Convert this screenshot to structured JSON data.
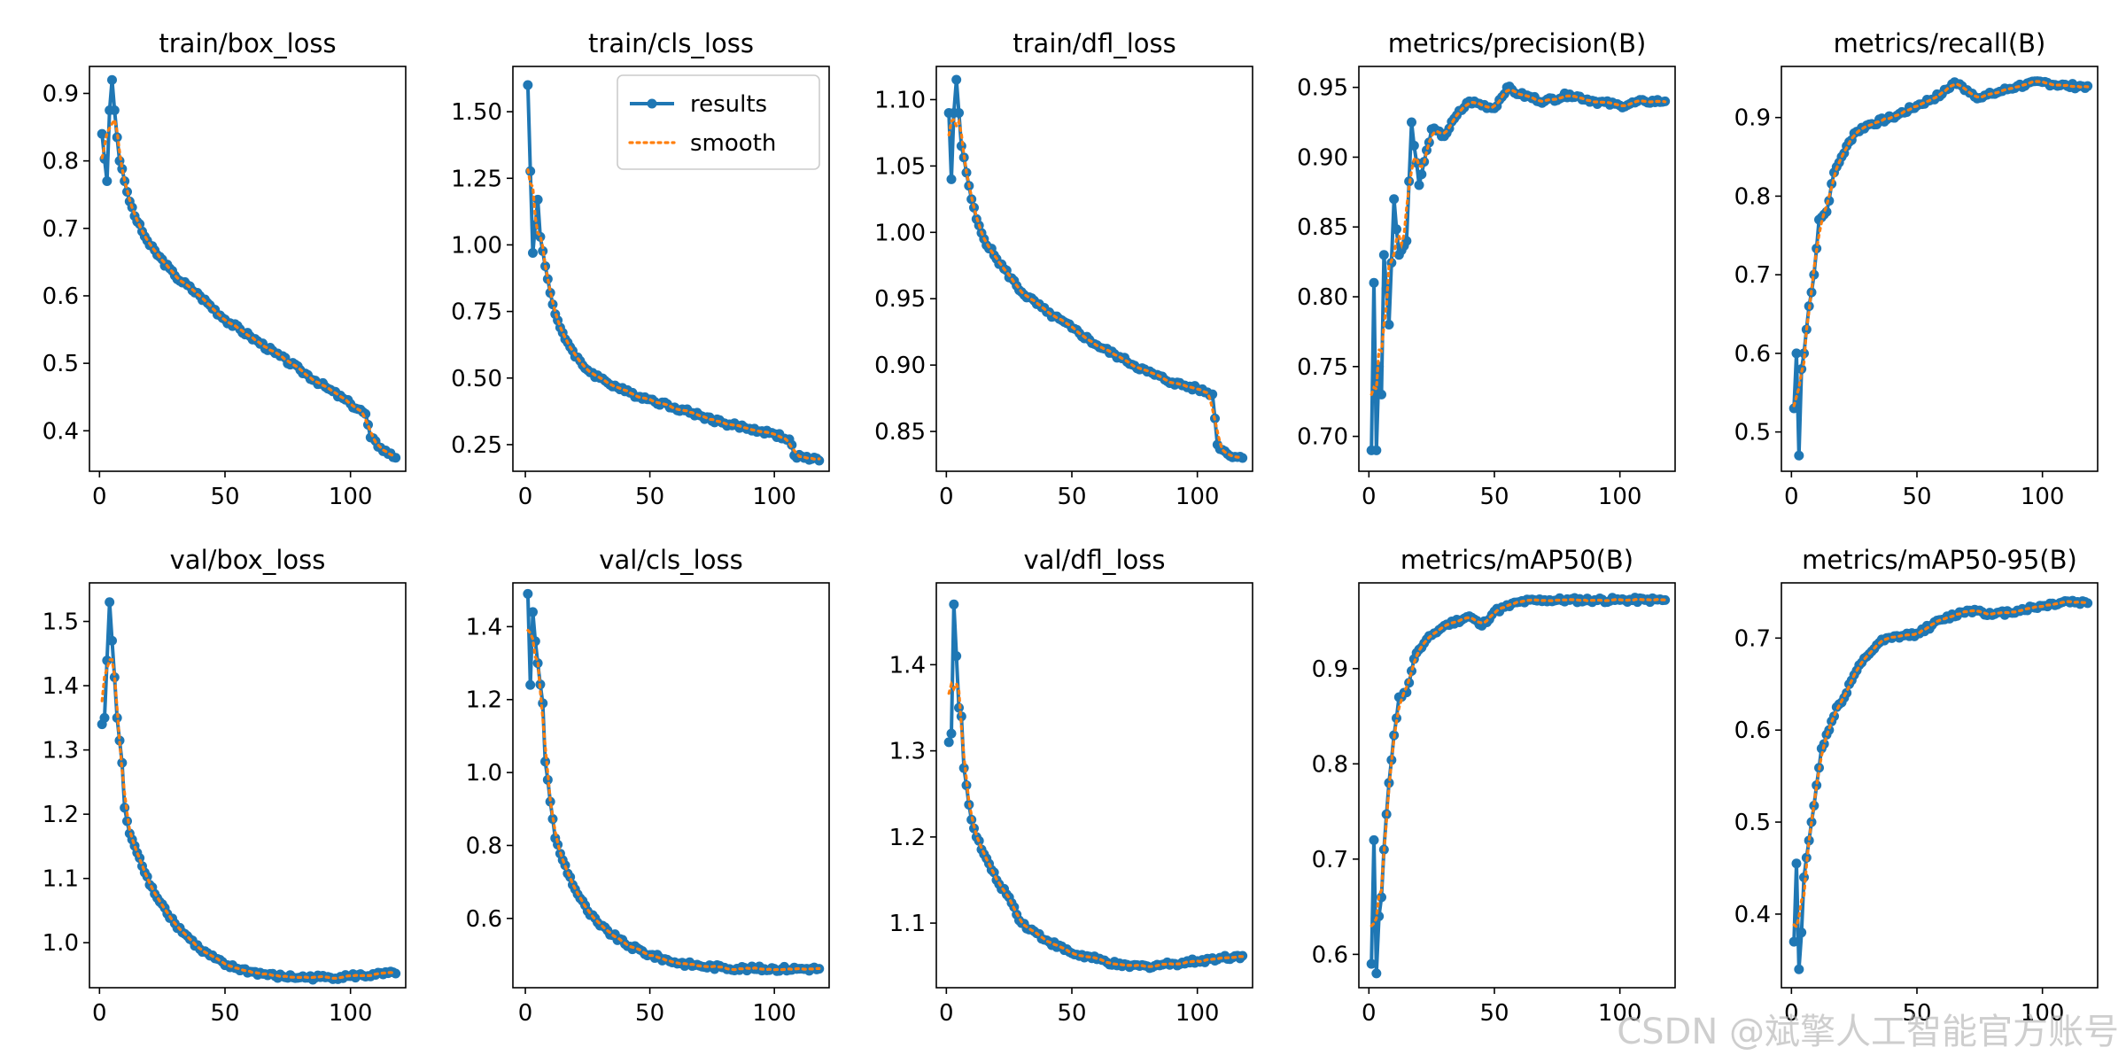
{
  "watermark": "CSDN @斌擎人工智能官方账号",
  "legend": {
    "series": [
      "results",
      "smooth"
    ]
  },
  "colors": {
    "results": "#1f77b4",
    "smooth": "#ff7f0e",
    "axis": "#000000"
  },
  "chart_data": [
    {
      "type": "line",
      "title": "train/box_loss",
      "xlim": [
        -4,
        122
      ],
      "ylim": [
        0.34,
        0.94
      ],
      "xticks": [
        0,
        50,
        100
      ],
      "yticks": [
        0.4,
        0.5,
        0.6,
        0.7,
        0.8,
        0.9
      ],
      "ytick_labels": [
        "0.4",
        "0.5",
        "0.6",
        "0.7",
        "0.8",
        "0.9"
      ],
      "anchors": [
        [
          1,
          0.84
        ],
        [
          3,
          0.77
        ],
        [
          4,
          0.875
        ],
        [
          5,
          0.92
        ],
        [
          6,
          0.875
        ],
        [
          7,
          0.835
        ],
        [
          8,
          0.8
        ],
        [
          10,
          0.77
        ],
        [
          12,
          0.74
        ],
        [
          15,
          0.71
        ],
        [
          20,
          0.675
        ],
        [
          30,
          0.63
        ],
        [
          40,
          0.6
        ],
        [
          50,
          0.565
        ],
        [
          60,
          0.54
        ],
        [
          70,
          0.515
        ],
        [
          80,
          0.49
        ],
        [
          90,
          0.465
        ],
        [
          100,
          0.44
        ],
        [
          106,
          0.425
        ],
        [
          108,
          0.39
        ],
        [
          112,
          0.375
        ],
        [
          118,
          0.36
        ]
      ],
      "legend": false
    },
    {
      "type": "line",
      "title": "train/cls_loss",
      "xlim": [
        -5,
        122
      ],
      "ylim": [
        0.15,
        1.67
      ],
      "xticks": [
        0,
        50,
        100
      ],
      "yticks": [
        0.25,
        0.5,
        0.75,
        1.0,
        1.25,
        1.5
      ],
      "ytick_labels": [
        "0.25",
        "0.50",
        "0.75",
        "1.00",
        "1.25",
        "1.50"
      ],
      "anchors": [
        [
          1,
          1.6
        ],
        [
          3,
          0.97
        ],
        [
          5,
          1.17
        ],
        [
          6,
          1.03
        ],
        [
          8,
          0.92
        ],
        [
          10,
          0.82
        ],
        [
          12,
          0.74
        ],
        [
          15,
          0.67
        ],
        [
          20,
          0.58
        ],
        [
          25,
          0.53
        ],
        [
          30,
          0.5
        ],
        [
          40,
          0.45
        ],
        [
          50,
          0.42
        ],
        [
          60,
          0.39
        ],
        [
          70,
          0.36
        ],
        [
          80,
          0.33
        ],
        [
          90,
          0.31
        ],
        [
          100,
          0.29
        ],
        [
          106,
          0.27
        ],
        [
          108,
          0.21
        ],
        [
          112,
          0.2
        ],
        [
          118,
          0.19
        ]
      ],
      "legend": true
    },
    {
      "type": "line",
      "title": "train/dfl_loss",
      "xlim": [
        -4,
        122
      ],
      "ylim": [
        0.82,
        1.125
      ],
      "xticks": [
        0,
        50,
        100
      ],
      "yticks": [
        0.85,
        0.9,
        0.95,
        1.0,
        1.05,
        1.1
      ],
      "ytick_labels": [
        "0.85",
        "0.90",
        "0.95",
        "1.00",
        "1.05",
        "1.10"
      ],
      "anchors": [
        [
          1,
          1.09
        ],
        [
          2,
          1.04
        ],
        [
          3,
          1.09
        ],
        [
          4,
          1.115
        ],
        [
          5,
          1.09
        ],
        [
          6,
          1.065
        ],
        [
          8,
          1.045
        ],
        [
          10,
          1.025
        ],
        [
          12,
          1.01
        ],
        [
          15,
          0.995
        ],
        [
          20,
          0.98
        ],
        [
          30,
          0.955
        ],
        [
          40,
          0.94
        ],
        [
          50,
          0.928
        ],
        [
          60,
          0.915
        ],
        [
          70,
          0.905
        ],
        [
          80,
          0.895
        ],
        [
          90,
          0.887
        ],
        [
          100,
          0.882
        ],
        [
          106,
          0.878
        ],
        [
          108,
          0.84
        ],
        [
          112,
          0.833
        ],
        [
          118,
          0.83
        ]
      ],
      "legend": false
    },
    {
      "type": "line",
      "title": "metrics/precision(B)",
      "xlim": [
        -4,
        122
      ],
      "ylim": [
        0.675,
        0.965
      ],
      "xticks": [
        0,
        50,
        100
      ],
      "yticks": [
        0.7,
        0.75,
        0.8,
        0.85,
        0.9,
        0.95
      ],
      "ytick_labels": [
        "0.70",
        "0.75",
        "0.80",
        "0.85",
        "0.90",
        "0.95"
      ],
      "anchors": [
        [
          1,
          0.69
        ],
        [
          2,
          0.81
        ],
        [
          3,
          0.69
        ],
        [
          4,
          0.75
        ],
        [
          5,
          0.73
        ],
        [
          6,
          0.83
        ],
        [
          8,
          0.78
        ],
        [
          10,
          0.87
        ],
        [
          12,
          0.83
        ],
        [
          15,
          0.84
        ],
        [
          17,
          0.925
        ],
        [
          20,
          0.88
        ],
        [
          25,
          0.92
        ],
        [
          30,
          0.915
        ],
        [
          35,
          0.93
        ],
        [
          40,
          0.94
        ],
        [
          50,
          0.935
        ],
        [
          55,
          0.95
        ],
        [
          60,
          0.945
        ],
        [
          70,
          0.94
        ],
        [
          80,
          0.945
        ],
        [
          90,
          0.94
        ],
        [
          100,
          0.937
        ],
        [
          110,
          0.94
        ],
        [
          118,
          0.94
        ]
      ],
      "legend": false
    },
    {
      "type": "line",
      "title": "metrics/recall(B)",
      "xlim": [
        -4,
        122
      ],
      "ylim": [
        0.45,
        0.965
      ],
      "xticks": [
        0,
        50,
        100
      ],
      "yticks": [
        0.5,
        0.6,
        0.7,
        0.8,
        0.9
      ],
      "ytick_labels": [
        "0.5",
        "0.6",
        "0.7",
        "0.8",
        "0.9"
      ],
      "anchors": [
        [
          1,
          0.53
        ],
        [
          2,
          0.6
        ],
        [
          3,
          0.47
        ],
        [
          4,
          0.58
        ],
        [
          5,
          0.6
        ],
        [
          7,
          0.66
        ],
        [
          9,
          0.7
        ],
        [
          11,
          0.77
        ],
        [
          14,
          0.78
        ],
        [
          17,
          0.83
        ],
        [
          20,
          0.85
        ],
        [
          25,
          0.88
        ],
        [
          30,
          0.89
        ],
        [
          40,
          0.9
        ],
        [
          50,
          0.915
        ],
        [
          60,
          0.93
        ],
        [
          65,
          0.945
        ],
        [
          70,
          0.935
        ],
        [
          75,
          0.925
        ],
        [
          80,
          0.93
        ],
        [
          90,
          0.94
        ],
        [
          100,
          0.945
        ],
        [
          110,
          0.94
        ],
        [
          118,
          0.94
        ]
      ],
      "legend": false
    },
    {
      "type": "line",
      "title": "val/box_loss",
      "xlim": [
        -4,
        122
      ],
      "ylim": [
        0.93,
        1.56
      ],
      "xticks": [
        0,
        50,
        100
      ],
      "yticks": [
        1.0,
        1.1,
        1.2,
        1.3,
        1.4,
        1.5
      ],
      "ytick_labels": [
        "1.0",
        "1.1",
        "1.2",
        "1.3",
        "1.4",
        "1.5"
      ],
      "anchors": [
        [
          1,
          1.34
        ],
        [
          2,
          1.35
        ],
        [
          4,
          1.53
        ],
        [
          5,
          1.47
        ],
        [
          7,
          1.35
        ],
        [
          9,
          1.28
        ],
        [
          10,
          1.21
        ],
        [
          12,
          1.17
        ],
        [
          15,
          1.14
        ],
        [
          20,
          1.09
        ],
        [
          25,
          1.06
        ],
        [
          30,
          1.03
        ],
        [
          40,
          0.99
        ],
        [
          50,
          0.965
        ],
        [
          60,
          0.955
        ],
        [
          70,
          0.948
        ],
        [
          80,
          0.946
        ],
        [
          90,
          0.946
        ],
        [
          100,
          0.948
        ],
        [
          110,
          0.95
        ],
        [
          118,
          0.952
        ]
      ],
      "legend": false
    },
    {
      "type": "line",
      "title": "val/cls_loss",
      "xlim": [
        -5,
        122
      ],
      "ylim": [
        0.41,
        1.52
      ],
      "xticks": [
        0,
        50,
        100
      ],
      "yticks": [
        0.6,
        0.8,
        1.0,
        1.2,
        1.4
      ],
      "ytick_labels": [
        "0.6",
        "0.8",
        "1.0",
        "1.2",
        "1.4"
      ],
      "anchors": [
        [
          1,
          1.49
        ],
        [
          2,
          1.24
        ],
        [
          3,
          1.44
        ],
        [
          4,
          1.36
        ],
        [
          5,
          1.3
        ],
        [
          7,
          1.19
        ],
        [
          8,
          1.03
        ],
        [
          9,
          0.98
        ],
        [
          10,
          0.92
        ],
        [
          12,
          0.82
        ],
        [
          15,
          0.76
        ],
        [
          20,
          0.68
        ],
        [
          25,
          0.62
        ],
        [
          30,
          0.58
        ],
        [
          40,
          0.53
        ],
        [
          50,
          0.5
        ],
        [
          60,
          0.48
        ],
        [
          70,
          0.47
        ],
        [
          80,
          0.465
        ],
        [
          90,
          0.462
        ],
        [
          100,
          0.462
        ],
        [
          110,
          0.462
        ],
        [
          118,
          0.462
        ]
      ],
      "legend": false
    },
    {
      "type": "line",
      "title": "val/dfl_loss",
      "xlim": [
        -4,
        122
      ],
      "ylim": [
        1.025,
        1.495
      ],
      "xticks": [
        0,
        50,
        100
      ],
      "yticks": [
        1.1,
        1.2,
        1.3,
        1.4
      ],
      "ytick_labels": [
        "1.1",
        "1.2",
        "1.3",
        "1.4"
      ],
      "anchors": [
        [
          1,
          1.31
        ],
        [
          2,
          1.32
        ],
        [
          3,
          1.47
        ],
        [
          4,
          1.41
        ],
        [
          5,
          1.35
        ],
        [
          6,
          1.34
        ],
        [
          7,
          1.28
        ],
        [
          8,
          1.26
        ],
        [
          10,
          1.22
        ],
        [
          12,
          1.2
        ],
        [
          15,
          1.18
        ],
        [
          20,
          1.15
        ],
        [
          25,
          1.13
        ],
        [
          30,
          1.1
        ],
        [
          40,
          1.08
        ],
        [
          50,
          1.065
        ],
        [
          60,
          1.058
        ],
        [
          70,
          1.05
        ],
        [
          80,
          1.05
        ],
        [
          90,
          1.053
        ],
        [
          100,
          1.056
        ],
        [
          110,
          1.06
        ],
        [
          118,
          1.062
        ]
      ],
      "legend": false
    },
    {
      "type": "line",
      "title": "metrics/mAP50(B)",
      "xlim": [
        -4,
        122
      ],
      "ylim": [
        0.565,
        0.99
      ],
      "xticks": [
        0,
        50,
        100
      ],
      "yticks": [
        0.6,
        0.7,
        0.8,
        0.9
      ],
      "ytick_labels": [
        "0.6",
        "0.7",
        "0.8",
        "0.9"
      ],
      "anchors": [
        [
          1,
          0.59
        ],
        [
          2,
          0.72
        ],
        [
          3,
          0.58
        ],
        [
          4,
          0.64
        ],
        [
          5,
          0.66
        ],
        [
          6,
          0.71
        ],
        [
          8,
          0.78
        ],
        [
          10,
          0.83
        ],
        [
          12,
          0.87
        ],
        [
          15,
          0.875
        ],
        [
          18,
          0.91
        ],
        [
          20,
          0.92
        ],
        [
          25,
          0.935
        ],
        [
          30,
          0.945
        ],
        [
          40,
          0.955
        ],
        [
          45,
          0.945
        ],
        [
          50,
          0.96
        ],
        [
          60,
          0.97
        ],
        [
          70,
          0.972
        ],
        [
          80,
          0.972
        ],
        [
          90,
          0.972
        ],
        [
          100,
          0.972
        ],
        [
          110,
          0.972
        ],
        [
          118,
          0.972
        ]
      ],
      "legend": false
    },
    {
      "type": "line",
      "title": "metrics/mAP50-95(B)",
      "xlim": [
        -4,
        122
      ],
      "ylim": [
        0.32,
        0.76
      ],
      "xticks": [
        0,
        50,
        100
      ],
      "yticks": [
        0.4,
        0.5,
        0.6,
        0.7
      ],
      "ytick_labels": [
        "0.4",
        "0.5",
        "0.6",
        "0.7"
      ],
      "anchors": [
        [
          1,
          0.37
        ],
        [
          2,
          0.455
        ],
        [
          3,
          0.34
        ],
        [
          4,
          0.38
        ],
        [
          5,
          0.44
        ],
        [
          7,
          0.48
        ],
        [
          8,
          0.5
        ],
        [
          10,
          0.54
        ],
        [
          12,
          0.58
        ],
        [
          15,
          0.6
        ],
        [
          18,
          0.625
        ],
        [
          20,
          0.63
        ],
        [
          25,
          0.66
        ],
        [
          30,
          0.68
        ],
        [
          35,
          0.695
        ],
        [
          40,
          0.7
        ],
        [
          50,
          0.705
        ],
        [
          60,
          0.72
        ],
        [
          70,
          0.73
        ],
        [
          75,
          0.73
        ],
        [
          80,
          0.725
        ],
        [
          90,
          0.73
        ],
        [
          100,
          0.735
        ],
        [
          110,
          0.74
        ],
        [
          118,
          0.738
        ]
      ],
      "legend": false
    }
  ]
}
